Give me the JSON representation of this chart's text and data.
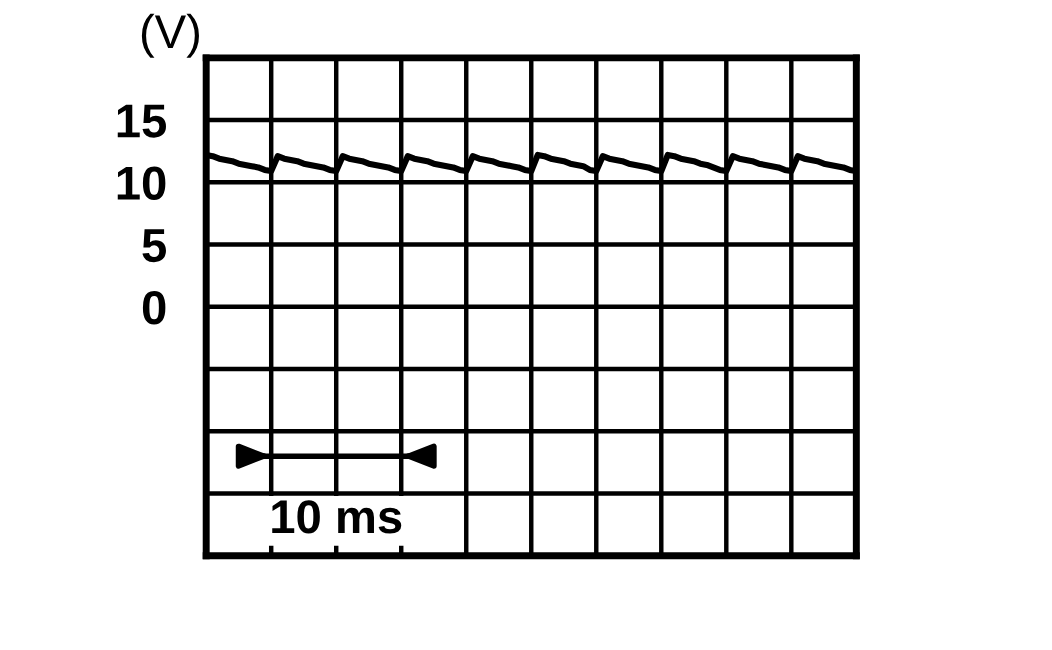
{
  "chart_data": {
    "type": "line",
    "ylabel": "(V)",
    "categories": [
      null,
      null,
      null,
      null,
      null,
      null,
      null,
      null,
      null,
      null,
      null,
      null,
      null,
      null,
      null,
      null,
      null,
      null,
      null,
      null,
      null,
      null,
      null,
      null,
      null,
      null,
      null,
      null,
      null,
      null,
      null,
      null,
      null,
      null,
      null,
      null,
      null,
      null,
      null,
      null,
      null,
      null,
      null,
      null,
      null,
      null,
      null,
      null,
      null,
      null,
      null,
      null,
      null,
      null,
      null,
      null,
      null,
      null,
      null,
      null,
      null,
      null,
      null,
      null,
      null,
      null,
      null,
      null,
      null,
      null,
      null,
      null,
      null,
      null,
      null,
      null,
      null,
      null,
      null,
      null,
      null,
      null,
      null,
      null,
      null,
      null,
      null,
      null,
      null,
      null,
      null,
      null,
      null,
      null,
      null,
      null,
      null,
      null,
      null,
      null,
      null
    ],
    "series": [
      {
        "color": "#000000",
        "values": [
          12.2,
          12.1,
          11.9,
          11.8,
          11.7,
          11.5,
          11.4,
          11.3,
          11.2,
          11.0,
          10.9,
          12.1,
          11.9,
          11.8,
          11.7,
          11.5,
          11.4,
          11.3,
          11.2,
          11.0,
          10.9,
          12.1,
          11.9,
          11.8,
          11.7,
          11.5,
          11.4,
          11.3,
          11.2,
          11.0,
          10.9,
          12.1,
          11.9,
          11.8,
          11.7,
          11.5,
          11.4,
          11.3,
          11.2,
          11.0,
          10.9,
          12.1,
          11.9,
          11.8,
          11.7,
          11.5,
          11.4,
          11.3,
          11.2,
          11.0,
          10.9,
          12.2,
          12.1,
          11.9,
          11.8,
          11.7,
          11.5,
          11.4,
          11.3,
          11.0,
          10.9,
          12.1,
          11.9,
          11.8,
          11.7,
          11.5,
          11.4,
          11.3,
          11.2,
          11.0,
          10.9,
          12.2,
          12.1,
          11.9,
          11.8,
          11.7,
          11.5,
          11.4,
          11.2,
          11.0,
          10.9,
          12.1,
          11.9,
          11.8,
          11.7,
          11.5,
          11.4,
          11.3,
          11.2,
          11.0,
          10.9,
          12.1,
          11.9,
          11.8,
          11.7,
          11.5,
          11.4,
          11.3,
          11.2,
          11.0,
          10.9
        ]
      }
    ],
    "ylim": [
      -20,
      20
    ],
    "yticks": [
      {
        "value": -20,
        "label": null
      },
      {
        "value": -15,
        "label": null
      },
      {
        "value": -10,
        "label": null
      },
      {
        "value": -5,
        "label": null
      },
      0,
      5,
      10,
      15,
      {
        "value": 20,
        "label": null
      }
    ],
    "tick_labels": "y",
    "grid": true,
    "marker": "none",
    "line_style": "solid",
    "annotations": [
      "10 ms"
    ]
  }
}
